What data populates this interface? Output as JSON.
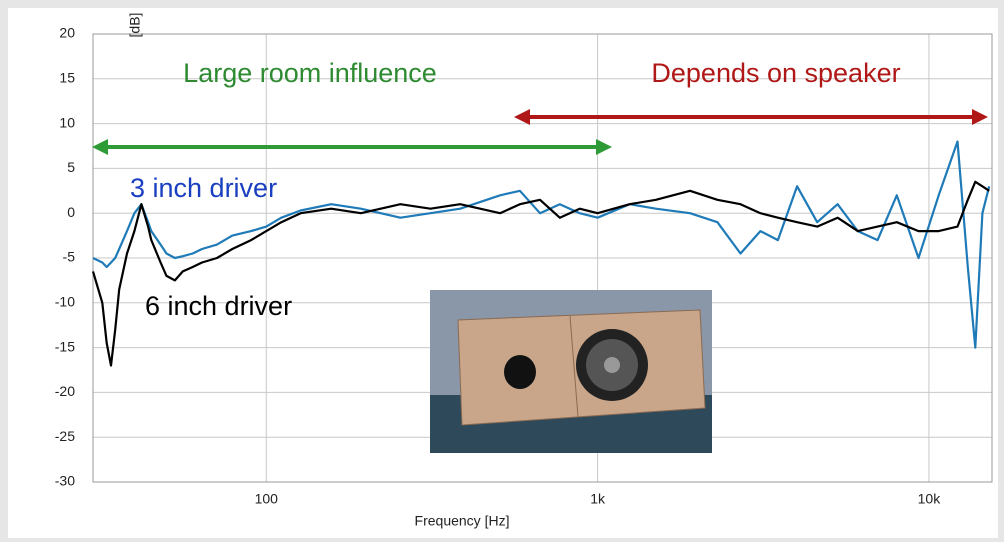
{
  "chart_data": {
    "type": "line",
    "xlabel": "Frequency [Hz]",
    "ylabel": "[dB]",
    "xscale": "log",
    "grid": true,
    "annotations": [
      "Large room influence",
      "Depends on speaker"
    ],
    "x": [
      30,
      32,
      33,
      34,
      35,
      36,
      38,
      40,
      42,
      44,
      45,
      48,
      50,
      53,
      56,
      60,
      64,
      71,
      79,
      90,
      100,
      111,
      127,
      157,
      193,
      254,
      313,
      385,
      508,
      583,
      670,
      769,
      883,
      1000,
      1250,
      1500,
      1900,
      2300,
      2700,
      3100,
      3500,
      4000,
      4600,
      5300,
      6100,
      7000,
      8000,
      9300,
      10700,
      12200,
      13100,
      13800,
      14500,
      15200
    ],
    "series": [
      {
        "name": "3 inch driver",
        "color": "#1f7ab8",
        "values": [
          -5,
          -5.5,
          -6,
          -5.5,
          -5,
          -4,
          -2,
          0,
          1,
          -1,
          -2,
          -3.5,
          -4.5,
          -5,
          -4.8,
          -4.5,
          -4,
          -3.5,
          -2.5,
          -2,
          -1.5,
          -0.5,
          0.3,
          1,
          0.5,
          -0.5,
          0,
          0.5,
          2,
          2.5,
          0,
          1,
          0,
          -0.5,
          1,
          0.5,
          0,
          -1,
          -4.5,
          -2,
          -3,
          3,
          -1,
          1,
          -2,
          -3,
          2,
          -5,
          2,
          8,
          -6,
          -15,
          0,
          3
        ]
      },
      {
        "name": "6 inch driver",
        "color": "#000000",
        "values": [
          -6.5,
          -10,
          -14.5,
          -17,
          -13,
          -8.5,
          -4.5,
          -2,
          1,
          -1.5,
          -3,
          -5.5,
          -7,
          -7.5,
          -6.5,
          -6,
          -5.5,
          -5,
          -4,
          -3,
          -2,
          -1,
          0,
          0.5,
          0,
          1,
          0.5,
          1,
          0,
          1,
          1.5,
          -0.5,
          0.5,
          0,
          1,
          1.5,
          2.5,
          1.5,
          1,
          0,
          -0.5,
          -1,
          -1.5,
          -0.5,
          -2,
          -1.5,
          -1,
          -2,
          -2,
          -1.5,
          1.5,
          3.5,
          3,
          2.5
        ]
      }
    ],
    "xlim": [
      30,
      15500
    ],
    "ylim": [
      -30,
      20
    ],
    "xticks": [
      {
        "value": 100,
        "label": "100"
      },
      {
        "value": 1000,
        "label": "1k"
      },
      {
        "value": 10000,
        "label": "10k"
      }
    ],
    "yticks": [
      -30,
      -25,
      -20,
      -15,
      -10,
      -5,
      0,
      5,
      10,
      15,
      20
    ]
  }
}
